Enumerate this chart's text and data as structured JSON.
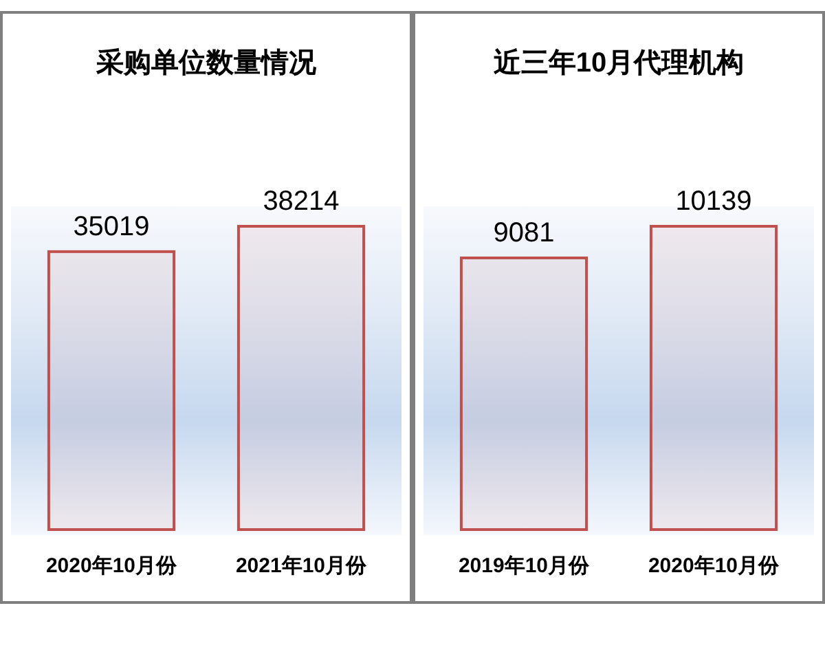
{
  "chart_data": [
    {
      "type": "bar",
      "title": "采购单位数量情况",
      "categories": [
        "2020年10月份",
        "2021年10月份"
      ],
      "values": [
        35019,
        38214
      ],
      "color": "#c0504d",
      "data_labels": true
    },
    {
      "type": "bar",
      "title": "近三年10月代理机构",
      "categories": [
        "2019年10月份",
        "2020年10月份"
      ],
      "values": [
        9081,
        10139
      ],
      "color": "#c0504d",
      "data_labels": true
    }
  ]
}
